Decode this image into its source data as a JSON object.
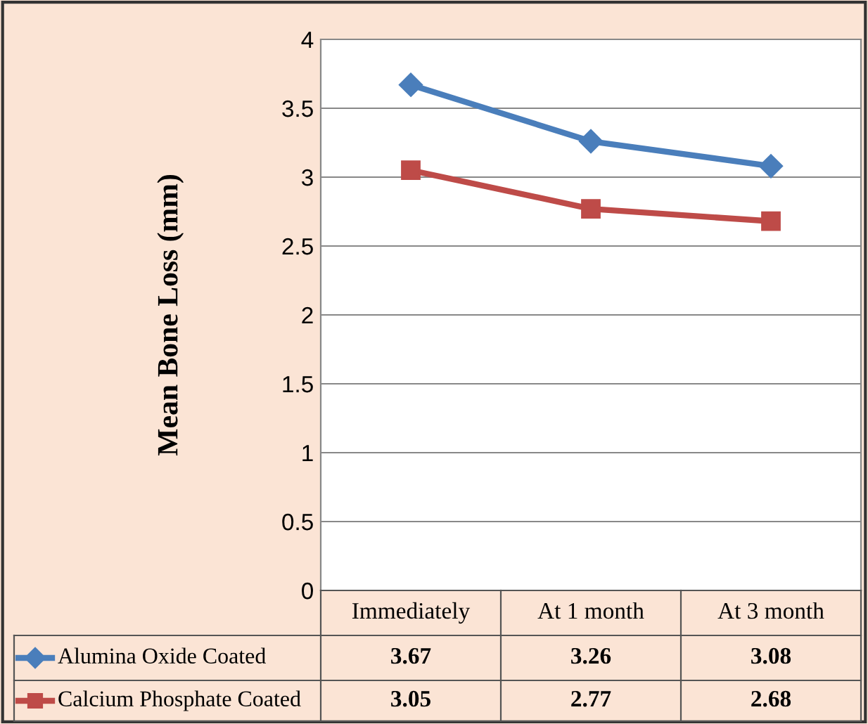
{
  "chart_data": {
    "type": "line",
    "ylabel": "Mean Bone Loss (mm)",
    "categories": [
      "Immediately",
      "At 1 month",
      "At 3 month"
    ],
    "series": [
      {
        "name": "Alumina Oxide Coated",
        "color": "#4a7ebb",
        "values": [
          3.67,
          3.26,
          3.08
        ],
        "marker": "diamond"
      },
      {
        "name": "Calcium Phosphate Coated",
        "color": "#be4b48",
        "values": [
          3.05,
          2.77,
          2.68
        ],
        "marker": "square"
      }
    ],
    "ylim": [
      0,
      4
    ],
    "yticks": [
      0,
      0.5,
      1,
      1.5,
      2,
      2.5,
      3,
      3.5,
      4
    ],
    "grid": "y",
    "legend": "bottom",
    "data_labels": true
  }
}
